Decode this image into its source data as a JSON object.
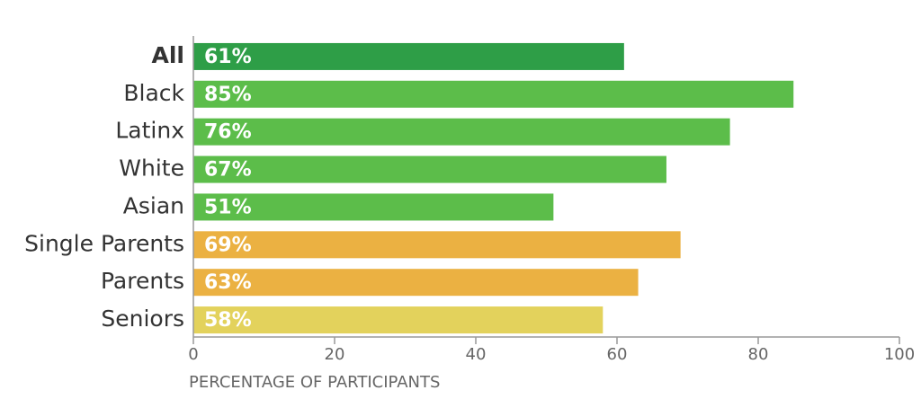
{
  "chart_data": {
    "type": "hbar",
    "categories": [
      "All",
      "Black",
      "Latinx",
      "White",
      "Asian",
      "Single Parents",
      "Parents",
      "Seniors"
    ],
    "values": [
      61,
      85,
      76,
      67,
      51,
      69,
      63,
      58
    ],
    "value_labels": [
      "61%",
      "85%",
      "76%",
      "67%",
      "51%",
      "69%",
      "63%",
      "58%"
    ],
    "colors": [
      "#2e9e47",
      "#5cbd4a",
      "#5cbd4a",
      "#5cbd4a",
      "#5cbd4a",
      "#ebb142",
      "#ebb142",
      "#e3d25c"
    ],
    "xlabel": "PERCENTAGE OF PARTICIPANTS",
    "xlim": [
      0,
      100
    ],
    "xticks": [
      0,
      20,
      40,
      60,
      80,
      100
    ],
    "grid": false
  }
}
